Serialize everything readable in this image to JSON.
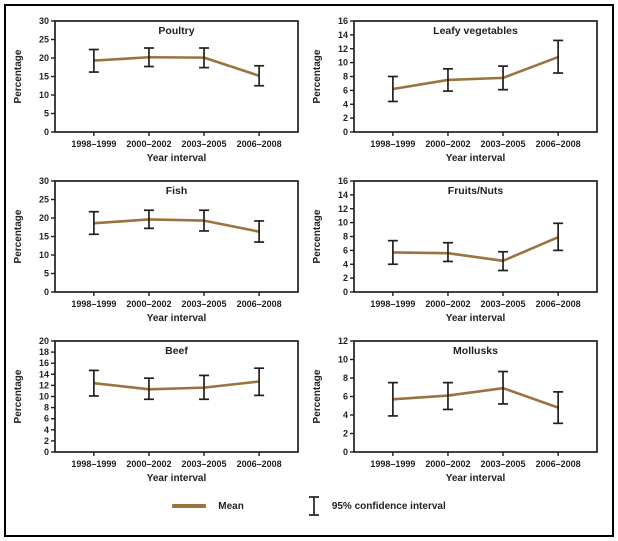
{
  "figure": {
    "x_label": "Year interval",
    "y_label": "Percentage",
    "categories": [
      "1998–1999",
      "2000–2002",
      "2003–2005",
      "2006–2008"
    ],
    "grid": false,
    "legend_position": "bottom",
    "colors": {
      "mean_line": "#9a7440",
      "error_bar": "#231f20",
      "axis": "#231f20",
      "text": "#231f20",
      "background": "#ffffff",
      "border": "#000000"
    }
  },
  "legend": {
    "mean_label": "Mean",
    "ci_label": "95% confidence interval"
  },
  "chart_data": [
    {
      "type": "line",
      "title": "Poultry",
      "categories": [
        "1998–1999",
        "2000–2002",
        "2003–2005",
        "2006–2008"
      ],
      "xlabel": "Year interval",
      "ylabel": "Percentage",
      "ylim": [
        0,
        30
      ],
      "ytick_step": 5,
      "means": [
        19.3,
        20.2,
        20.1,
        15.2
      ],
      "ci_low": [
        16.2,
        17.7,
        17.4,
        12.5
      ],
      "ci_high": [
        22.3,
        22.7,
        22.7,
        17.9
      ]
    },
    {
      "type": "line",
      "title": "Leafy vegetables",
      "categories": [
        "1998–1999",
        "2000–2002",
        "2003–2005",
        "2006–2008"
      ],
      "xlabel": "Year interval",
      "ylabel": "Percentage",
      "ylim": [
        0,
        16
      ],
      "ytick_step": 2,
      "means": [
        6.2,
        7.5,
        7.8,
        10.8
      ],
      "ci_low": [
        4.4,
        5.9,
        6.1,
        8.5
      ],
      "ci_high": [
        8.0,
        9.1,
        9.5,
        13.2
      ]
    },
    {
      "type": "line",
      "title": "Fish",
      "categories": [
        "1998–1999",
        "2000–2002",
        "2003–2005",
        "2006–2008"
      ],
      "xlabel": "Year interval",
      "ylabel": "Percentage",
      "ylim": [
        0,
        30
      ],
      "ytick_step": 5,
      "means": [
        18.6,
        19.6,
        19.3,
        16.3
      ],
      "ci_low": [
        15.6,
        17.2,
        16.5,
        13.5
      ],
      "ci_high": [
        21.7,
        22.1,
        22.1,
        19.2
      ]
    },
    {
      "type": "line",
      "title": "Fruits/Nuts",
      "categories": [
        "1998–1999",
        "2000–2002",
        "2003–2005",
        "2006–2008"
      ],
      "xlabel": "Year interval",
      "ylabel": "Percentage",
      "ylim": [
        0,
        16
      ],
      "ytick_step": 2,
      "means": [
        5.7,
        5.6,
        4.5,
        7.9
      ],
      "ci_low": [
        4.0,
        4.4,
        3.1,
        6.0
      ],
      "ci_high": [
        7.4,
        7.1,
        5.8,
        9.9
      ]
    },
    {
      "type": "line",
      "title": "Beef",
      "categories": [
        "1998–1999",
        "2000–2002",
        "2003–2005",
        "2006–2008"
      ],
      "xlabel": "Year interval",
      "ylabel": "Percentage",
      "ylim": [
        0,
        20
      ],
      "ytick_step": 2,
      "means": [
        12.4,
        11.3,
        11.6,
        12.7
      ],
      "ci_low": [
        10.1,
        9.5,
        9.5,
        10.2
      ],
      "ci_high": [
        14.7,
        13.3,
        13.8,
        15.1
      ]
    },
    {
      "type": "line",
      "title": "Mollusks",
      "categories": [
        "1998–1999",
        "2000–2002",
        "2003–2005",
        "2006–2008"
      ],
      "xlabel": "Year interval",
      "ylabel": "Percentage",
      "ylim": [
        0,
        12
      ],
      "ytick_step": 2,
      "means": [
        5.7,
        6.1,
        6.9,
        4.8
      ],
      "ci_low": [
        3.9,
        4.6,
        5.2,
        3.1
      ],
      "ci_high": [
        7.5,
        7.5,
        8.7,
        6.5
      ]
    }
  ]
}
